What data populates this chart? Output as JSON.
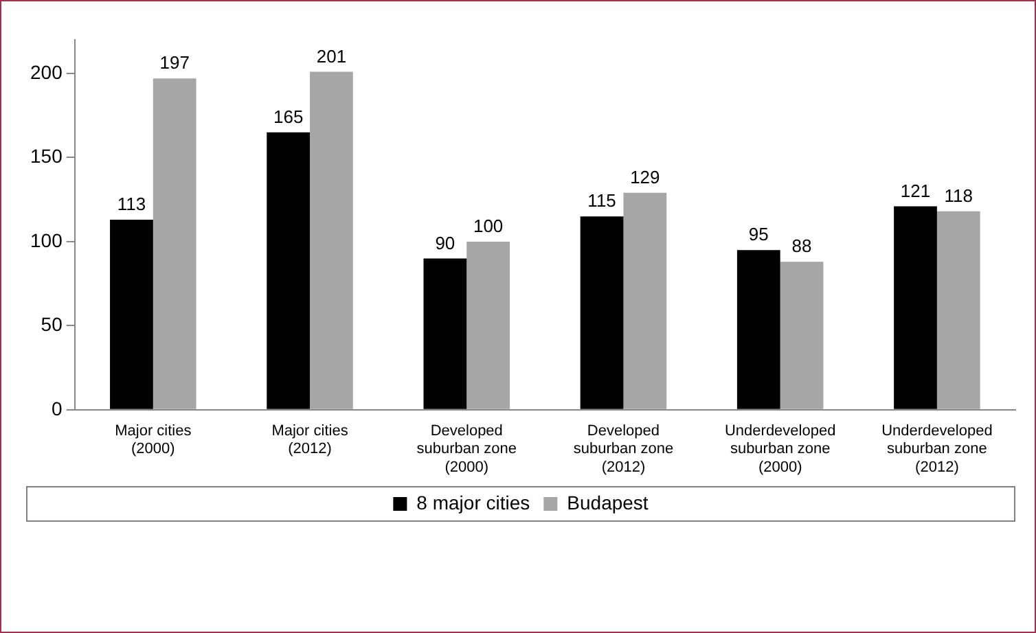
{
  "chart_data": {
    "type": "bar",
    "categories": [
      "Major cities (2000)",
      "Major cities (2012)",
      "Developed suburban zone (2000)",
      "Developed suburban zone (2012)",
      "Underdeveloped suburban zone (2000)",
      "Underdeveloped suburban zone (2012)"
    ],
    "series": [
      {
        "name": "8 major cities",
        "color": "#000000",
        "values": [
          113,
          165,
          90,
          115,
          95,
          121
        ]
      },
      {
        "name": "Budapest",
        "color": "#a6a6a6",
        "values": [
          197,
          201,
          100,
          129,
          88,
          118
        ]
      }
    ],
    "ylim": [
      0,
      220
    ],
    "yticks": [
      0,
      50,
      100,
      150,
      200
    ],
    "grid": false,
    "legend": "bottom",
    "data_labels": true
  }
}
